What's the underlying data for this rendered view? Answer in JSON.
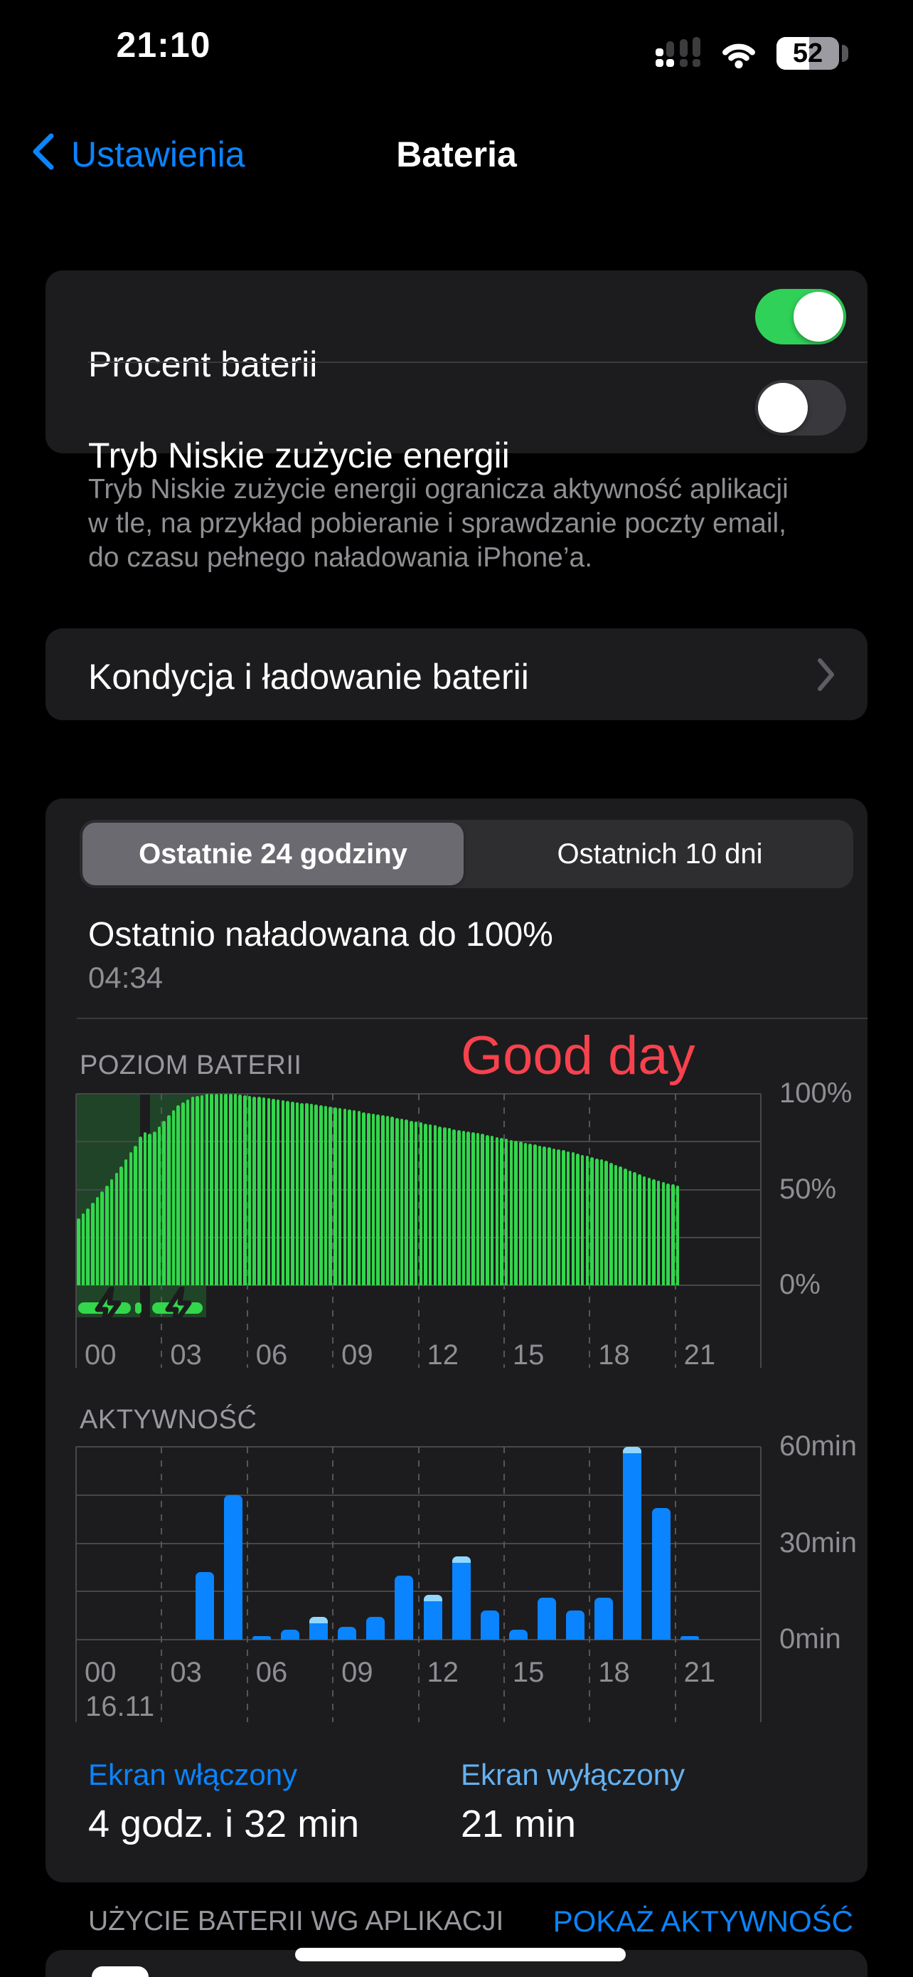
{
  "status_bar": {
    "time": "21:10",
    "battery_percent": "52",
    "battery_fill_pct": 52
  },
  "nav": {
    "back": "Ustawienia",
    "title": "Bateria"
  },
  "settings": {
    "battery_percent_label": "Procent baterii",
    "battery_percent_on": true,
    "low_power_label": "Tryb Niskie zużycie energii",
    "low_power_on": false,
    "low_power_footnote_lines": [
      "Tryb Niskie zużycie energii ogranicza aktywność aplikacji",
      "w tle, na przykład pobieranie i sprawdzanie poczty email,",
      "do czasu pełnego naładowania iPhone’a."
    ],
    "health_label": "Kondycja i ładowanie baterii"
  },
  "tabs": {
    "selected": "Ostatnie 24 godziny",
    "other": "Ostatnich 10 dni"
  },
  "last_charged": {
    "title": "Ostatnio naładowana do 100%",
    "time": "04:34"
  },
  "annotation": {
    "text": "Good day",
    "color": "#F7424E"
  },
  "chart_data": [
    {
      "type": "bar",
      "title": "POZIOM BATERII",
      "ylabel_ticks": [
        "100%",
        "50%",
        "0%"
      ],
      "ylim": [
        0,
        100
      ],
      "xticks": [
        "00",
        "03",
        "06",
        "09",
        "12",
        "15",
        "18",
        "21"
      ],
      "hours_span": 24,
      "series_end_hour": 21,
      "bar_interval_min": 10,
      "level_keypoints_hour_pct": [
        [
          0,
          35
        ],
        [
          0.5,
          43
        ],
        [
          1,
          52
        ],
        [
          1.5,
          62
        ],
        [
          2,
          73
        ],
        [
          2.25,
          80
        ],
        [
          2.6,
          79
        ],
        [
          3,
          86
        ],
        [
          3.5,
          94
        ],
        [
          4,
          98.5
        ],
        [
          4.57,
          100
        ],
        [
          5.5,
          100
        ],
        [
          6,
          99
        ],
        [
          7,
          97
        ],
        [
          8,
          95
        ],
        [
          9,
          93
        ],
        [
          10,
          90.5
        ],
        [
          11,
          88
        ],
        [
          12,
          85
        ],
        [
          13,
          82
        ],
        [
          14,
          79.5
        ],
        [
          15,
          76.5
        ],
        [
          16,
          73.5
        ],
        [
          17,
          70.5
        ],
        [
          18,
          67
        ],
        [
          18.5,
          65
        ],
        [
          19,
          62
        ],
        [
          19.5,
          59
        ],
        [
          20,
          56
        ],
        [
          20.5,
          54
        ],
        [
          21,
          52
        ]
      ],
      "charging_periods_hours": [
        [
          0,
          2.25
        ],
        [
          2.6,
          4.57
        ]
      ],
      "bar_color": "#32D74B",
      "charge_region_color": "rgba(50,215,75,0.22)",
      "grid": true,
      "legend": "none"
    },
    {
      "type": "bar",
      "title": "AKTYWNOŚĆ",
      "ylabel_ticks": [
        "60min",
        "30min",
        "0min"
      ],
      "ylim": [
        0,
        60
      ],
      "xticks": [
        "00",
        "03",
        "06",
        "09",
        "12",
        "15",
        "18",
        "21"
      ],
      "date_label": "16.11",
      "categories_hour": [
        0,
        1,
        2,
        3,
        4,
        5,
        6,
        7,
        8,
        9,
        10,
        11,
        12,
        13,
        14,
        15,
        16,
        17,
        18,
        19,
        20,
        21
      ],
      "values_min": [
        0,
        0,
        0,
        0,
        21,
        45,
        1,
        3,
        7,
        4,
        7,
        20,
        14,
        26,
        9,
        3,
        13,
        9,
        13,
        60,
        41,
        1
      ],
      "screen_off_cap_hours": [
        8,
        12,
        13,
        19
      ],
      "bar_color": "#0A84FF",
      "cap_color": "#92D8FE",
      "grid": true,
      "legend": "none"
    }
  ],
  "screen_stats": {
    "on_label": "Ekran włączony",
    "on_value": "4 godz. i 32 min",
    "off_label": "Ekran wyłączony",
    "off_value": "21 min"
  },
  "bottom": {
    "section_title": "UŻYCIE BATERII WG APLIKACJI",
    "action": "POKAŻ AKTYWNOŚĆ"
  },
  "colors": {
    "accent_blue": "#0A84FF",
    "light_blue": "#64B2F2",
    "toggle_green": "#30D158",
    "bar_green": "#32D74B",
    "annotation_red": "#F7424E",
    "card_bg": "#1C1C1E",
    "text_secondary": "#8E8E93"
  }
}
